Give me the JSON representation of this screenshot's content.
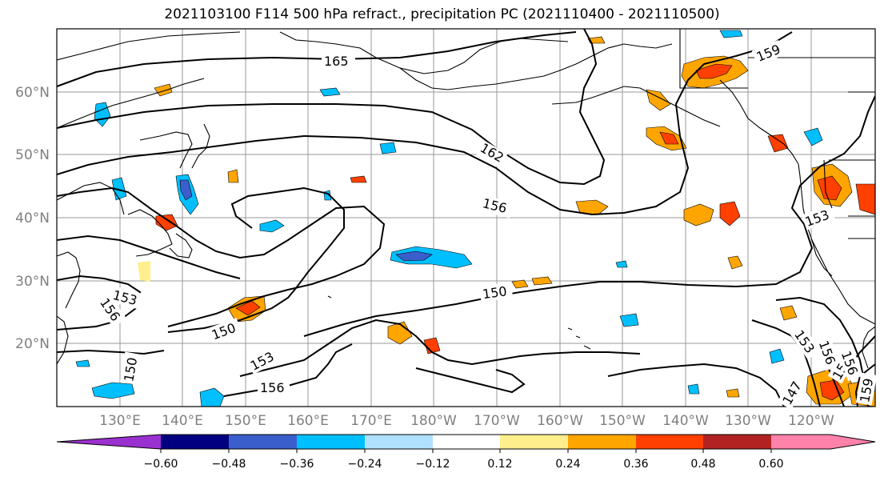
{
  "title": "2021103100 F114 500 hPa refract., precipitation PC (2021110400 - 2021110500)",
  "map": {
    "lat_labels": [
      "20°N",
      "30°N",
      "40°N",
      "50°N",
      "60°N"
    ],
    "lon_labels": [
      "130°E",
      "140°E",
      "150°E",
      "160°E",
      "170°E",
      "180°W",
      "170°W",
      "160°W",
      "150°W",
      "140°W",
      "130°W",
      "120°W"
    ],
    "contour_labels": [
      "165",
      "162",
      "159",
      "156",
      "153",
      "150",
      "153",
      "156",
      "150",
      "153",
      "156",
      "150",
      "153",
      "156",
      "147",
      "159",
      "153",
      "156"
    ]
  },
  "colorbar": {
    "tick_labels": [
      "−0.60",
      "−0.48",
      "−0.36",
      "−0.24",
      "−0.12",
      "0.12",
      "0.24",
      "0.36",
      "0.48",
      "0.60"
    ],
    "colors": [
      "#9b30d0",
      "#000080",
      "#3a5fcd",
      "#00bfff",
      "#b0e2ff",
      "#ffffff",
      "#ffee8c",
      "#ffa500",
      "#ff4000",
      "#b22222",
      "#ff82ab"
    ]
  }
}
